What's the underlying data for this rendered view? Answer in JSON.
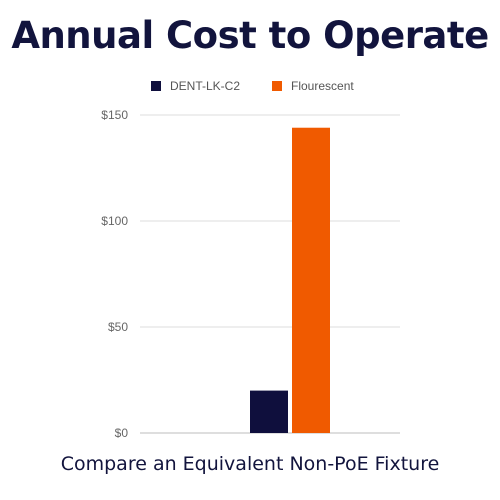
{
  "chart_data": {
    "type": "bar",
    "title": "Annual Cost to Operate",
    "subtitle": "Compare an Equivalent Non-PoE Fixture",
    "xlabel": "",
    "ylabel": "",
    "categories": [
      ""
    ],
    "series": [
      {
        "name": "DENT-LK-C2",
        "values": [
          20
        ],
        "color": "#0f0f3d"
      },
      {
        "name": "Flourescent",
        "values": [
          144
        ],
        "color": "#f05a00"
      }
    ],
    "ylim": [
      0,
      150
    ],
    "yticks": [
      {
        "value": 0,
        "label": "$0"
      },
      {
        "value": 50,
        "label": "$50"
      },
      {
        "value": 100,
        "label": "$100"
      },
      {
        "value": 150,
        "label": "$150"
      }
    ],
    "grid": true,
    "legend_position": "top"
  }
}
